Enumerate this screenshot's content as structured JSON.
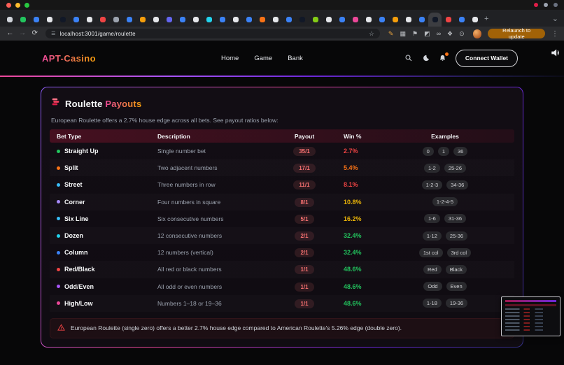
{
  "browser": {
    "traffic_lights": [
      "#ff5f57",
      "#febc2e",
      "#28c840"
    ],
    "menubar_status_dots": [
      "#e11d48",
      "#9ca3af",
      "#6b7280"
    ],
    "icons": {
      "back": "←",
      "forward": "→",
      "reload": "⟳",
      "tune": "☰",
      "star": "☆",
      "new_tab": "+",
      "tab_search": "⌄",
      "menu": "⋮"
    },
    "url": "localhost:3001/game/roulette",
    "relaunch_label": "Relaunch to update",
    "active_tab_index": 32,
    "tab_favicons": [
      "#d1d5db",
      "#22c55e",
      "#3b82f6",
      "#e5e7eb",
      "#111827",
      "#3b82f6",
      "#e5e7eb",
      "#ef4444",
      "#9ca3af",
      "#3b82f6",
      "#f59e0b",
      "#e5e7eb",
      "#6366f1",
      "#3b82f6",
      "#e5e7eb",
      "#22d3ee",
      "#3b82f6",
      "#e5e7eb",
      "#3b82f6",
      "#f97316",
      "#e5e7eb",
      "#3b82f6",
      "#111827",
      "#84cc16",
      "#e5e7eb",
      "#3b82f6",
      "#ec4899",
      "#e5e7eb",
      "#3b82f6",
      "#f59e0b",
      "#e5e7eb",
      "#3b82f6",
      "#111827",
      "#ef4444",
      "#3b82f6",
      "#e5e7eb"
    ],
    "extension_icons": [
      {
        "glyph": "✎",
        "color": "#e8a33d"
      },
      {
        "glyph": "▦",
        "color": "#b9bcc0"
      },
      {
        "glyph": "⚑",
        "color": "#b9bcc0"
      },
      {
        "glyph": "◩",
        "color": "#b9bcc0"
      },
      {
        "glyph": "∞",
        "color": "#b9bcc0"
      },
      {
        "glyph": "❖",
        "color": "#b9bcc0"
      },
      {
        "glyph": "⊙",
        "color": "#b9bcc0"
      }
    ]
  },
  "header": {
    "logo": "APT-Casino",
    "nav": [
      "Home",
      "Game",
      "Bank"
    ],
    "wallet_button": "Connect Wallet"
  },
  "main": {
    "title_primary": "Roulette ",
    "title_accent": "Payouts",
    "subtitle": "European Roulette offers a 2.7% house edge across all bets. See payout ratios below:",
    "table": {
      "headers": [
        "Bet Type",
        "Description",
        "Payout",
        "Win %",
        "Examples"
      ],
      "rows": [
        {
          "bet": "Straight Up",
          "dot": "#22c55e",
          "desc": "Single number bet",
          "payout": "35/1",
          "win": "2.7%",
          "win_color": "#ef4444",
          "examples": [
            "0",
            "1",
            "36"
          ]
        },
        {
          "bet": "Split",
          "dot": "#f97316",
          "desc": "Two adjacent numbers",
          "payout": "17/1",
          "win": "5.4%",
          "win_color": "#f97316",
          "examples": [
            "1-2",
            "25-26"
          ]
        },
        {
          "bet": "Street",
          "dot": "#38bdf8",
          "desc": "Three numbers in row",
          "payout": "11/1",
          "win": "8.1%",
          "win_color": "#ef4444",
          "examples": [
            "1-2-3",
            "34-36"
          ]
        },
        {
          "bet": "Corner",
          "dot": "#a78bfa",
          "desc": "Four numbers in square",
          "payout": "8/1",
          "win": "10.8%",
          "win_color": "#eab308",
          "examples": [
            "1-2-4-5"
          ]
        },
        {
          "bet": "Six Line",
          "dot": "#38bdf8",
          "desc": "Six consecutive numbers",
          "payout": "5/1",
          "win": "16.2%",
          "win_color": "#eab308",
          "examples": [
            "1-6",
            "31-36"
          ]
        },
        {
          "bet": "Dozen",
          "dot": "#22d3ee",
          "desc": "12 consecutive numbers",
          "payout": "2/1",
          "win": "32.4%",
          "win_color": "#22c55e",
          "examples": [
            "1-12",
            "25-36"
          ]
        },
        {
          "bet": "Column",
          "dot": "#3b82f6",
          "desc": "12 numbers (vertical)",
          "payout": "2/1",
          "win": "32.4%",
          "win_color": "#22c55e",
          "examples": [
            "1st col",
            "3rd col"
          ]
        },
        {
          "bet": "Red/Black",
          "dot": "#ef4444",
          "desc": "All red or black numbers",
          "payout": "1/1",
          "win": "48.6%",
          "win_color": "#22c55e",
          "examples": [
            "Red",
            "Black"
          ]
        },
        {
          "bet": "Odd/Even",
          "dot": "#a855f7",
          "desc": "All odd or even numbers",
          "payout": "1/1",
          "win": "48.6%",
          "win_color": "#22c55e",
          "examples": [
            "Odd",
            "Even"
          ]
        },
        {
          "bet": "High/Low",
          "dot": "#ec4899",
          "desc": "Numbers 1–18 or 19–36",
          "payout": "1/1",
          "win": "48.6%",
          "win_color": "#22c55e",
          "examples": [
            "1-18",
            "19-36"
          ]
        }
      ]
    },
    "note": "European Roulette (single zero) offers a better 2.7% house edge compared to American Roulette's 5.26% edge (double zero)."
  }
}
